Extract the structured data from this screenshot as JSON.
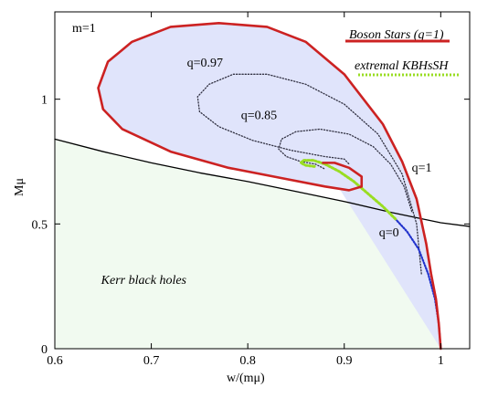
{
  "chart_data": {
    "type": "line",
    "title": "",
    "xlabel": "w/(mμ)",
    "ylabel": "Mμ",
    "xlim": [
      0.6,
      1.03
    ],
    "ylim": [
      0,
      1.35
    ],
    "x_ticks": [
      {
        "value": 0.6,
        "label": "0.6"
      },
      {
        "value": 0.7,
        "label": "0.7"
      },
      {
        "value": 0.8,
        "label": "0.8"
      },
      {
        "value": 0.9,
        "label": "0.9"
      },
      {
        "value": 1.0,
        "label": "1"
      }
    ],
    "y_ticks": [
      {
        "value": 0,
        "label": "0"
      },
      {
        "value": 0.5,
        "label": "0.5"
      },
      {
        "value": 1,
        "label": "1"
      }
    ],
    "grid": false,
    "legend_position": "top-right",
    "legend": [
      {
        "label": "Boson Stars (q=1)",
        "color": "#cc2222",
        "style": "solid"
      },
      {
        "label": "extremal KBHsSH",
        "color": "#99dd22",
        "style": "dotted"
      }
    ],
    "annotations": [
      {
        "text": "m=1",
        "x": 0.618,
        "y": 1.27
      },
      {
        "text": "q=0.97",
        "x": 0.737,
        "y": 1.13
      },
      {
        "text": "q=0.85",
        "x": 0.793,
        "y": 0.92
      },
      {
        "text": "q=1",
        "x": 0.97,
        "y": 0.71
      },
      {
        "text": "q=0",
        "x": 0.936,
        "y": 0.45
      },
      {
        "text": "Kerr black holes",
        "x": 0.648,
        "y": 0.26,
        "italic": true
      }
    ],
    "regions": [
      {
        "name": "boson-star-domain",
        "color": "#e0e4fb"
      },
      {
        "name": "kerr-black-hole-region",
        "color": "#f1faf0"
      }
    ],
    "series": [
      {
        "name": "Boson Stars (q=1)",
        "color": "#cc2222",
        "style": "solid",
        "points": [
          [
            1.0,
            0.0
          ],
          [
            0.998,
            0.1
          ],
          [
            0.995,
            0.2
          ],
          [
            0.99,
            0.3
          ],
          [
            0.985,
            0.42
          ],
          [
            0.975,
            0.6
          ],
          [
            0.96,
            0.75
          ],
          [
            0.94,
            0.9
          ],
          [
            0.9,
            1.1
          ],
          [
            0.86,
            1.23
          ],
          [
            0.82,
            1.29
          ],
          [
            0.77,
            1.305
          ],
          [
            0.72,
            1.29
          ],
          [
            0.68,
            1.23
          ],
          [
            0.655,
            1.15
          ],
          [
            0.645,
            1.045
          ],
          [
            0.65,
            0.96
          ],
          [
            0.67,
            0.88
          ],
          [
            0.72,
            0.79
          ],
          [
            0.78,
            0.725
          ],
          [
            0.84,
            0.68
          ],
          [
            0.88,
            0.65
          ],
          [
            0.905,
            0.635
          ],
          [
            0.918,
            0.65
          ],
          [
            0.918,
            0.69
          ],
          [
            0.905,
            0.725
          ],
          [
            0.89,
            0.745
          ],
          [
            0.878,
            0.745
          ]
        ]
      },
      {
        "name": "",
        "color": "#000000",
        "style": "solid",
        "points": [
          [
            0.6,
            0.84
          ],
          [
            0.65,
            0.79
          ],
          [
            0.7,
            0.745
          ],
          [
            0.75,
            0.705
          ],
          [
            0.8,
            0.67
          ],
          [
            0.85,
            0.63
          ],
          [
            0.9,
            0.59
          ],
          [
            0.95,
            0.545
          ],
          [
            1.0,
            0.505
          ],
          [
            1.03,
            0.49
          ]
        ]
      },
      {
        "name": "q=0.97",
        "color": "#333344",
        "style": "dotted",
        "points": [
          [
            0.98,
            0.3
          ],
          [
            0.975,
            0.5
          ],
          [
            0.96,
            0.7
          ],
          [
            0.935,
            0.86
          ],
          [
            0.9,
            0.98
          ],
          [
            0.86,
            1.06
          ],
          [
            0.82,
            1.1
          ],
          [
            0.785,
            1.1
          ],
          [
            0.76,
            1.06
          ],
          [
            0.748,
            1.01
          ],
          [
            0.75,
            0.95
          ],
          [
            0.77,
            0.89
          ],
          [
            0.805,
            0.835
          ],
          [
            0.845,
            0.795
          ],
          [
            0.88,
            0.77
          ],
          [
            0.9,
            0.76
          ],
          [
            0.905,
            0.74
          ]
        ]
      },
      {
        "name": "q=0.85",
        "color": "#333344",
        "style": "dotted",
        "points": [
          [
            0.97,
            0.55
          ],
          [
            0.962,
            0.65
          ],
          [
            0.948,
            0.74
          ],
          [
            0.93,
            0.81
          ],
          [
            0.905,
            0.86
          ],
          [
            0.875,
            0.88
          ],
          [
            0.85,
            0.87
          ],
          [
            0.835,
            0.84
          ],
          [
            0.832,
            0.8
          ],
          [
            0.84,
            0.77
          ],
          [
            0.855,
            0.75
          ],
          [
            0.87,
            0.74
          ],
          [
            0.88,
            0.72
          ]
        ]
      },
      {
        "name": "extremal KBHsSH",
        "color": "#99dd22",
        "style": "dotted",
        "points": [
          [
            0.953,
            0.52
          ],
          [
            0.94,
            0.57
          ],
          [
            0.925,
            0.62
          ],
          [
            0.91,
            0.67
          ],
          [
            0.895,
            0.71
          ],
          [
            0.88,
            0.74
          ],
          [
            0.868,
            0.755
          ],
          [
            0.858,
            0.755
          ],
          [
            0.855,
            0.745
          ],
          [
            0.86,
            0.735
          ],
          [
            0.87,
            0.73
          ]
        ]
      },
      {
        "name": "q=0",
        "color": "#2233cc",
        "style": "dotted",
        "points": [
          [
            0.953,
            0.52
          ],
          [
            0.965,
            0.47
          ],
          [
            0.977,
            0.4
          ],
          [
            0.987,
            0.3
          ],
          [
            0.994,
            0.2
          ],
          [
            0.998,
            0.1
          ],
          [
            1.0,
            0.0
          ]
        ]
      }
    ]
  }
}
